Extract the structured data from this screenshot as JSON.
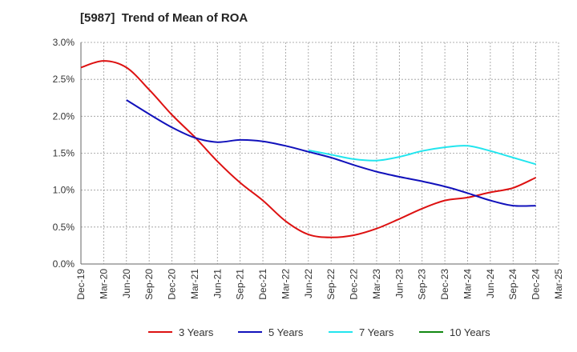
{
  "chart_data": {
    "type": "line",
    "title": "[5987]  Trend of Mean of ROA",
    "xlabel": "",
    "ylabel": "",
    "x_ticks": [
      "Dec-19",
      "Mar-20",
      "Jun-20",
      "Sep-20",
      "Dec-20",
      "Mar-21",
      "Jun-21",
      "Sep-21",
      "Dec-21",
      "Mar-22",
      "Jun-22",
      "Sep-22",
      "Dec-22",
      "Mar-23",
      "Jun-23",
      "Sep-23",
      "Dec-23",
      "Mar-24",
      "Jun-24",
      "Sep-24",
      "Dec-24",
      "Mar-25"
    ],
    "y_ticks": [
      "0.0%",
      "0.5%",
      "1.0%",
      "1.5%",
      "2.0%",
      "2.5%",
      "3.0%"
    ],
    "ylim": [
      0,
      3.0
    ],
    "grid": true,
    "legend_position": "bottom",
    "series": [
      {
        "name": "3 Years",
        "color": "#dd1111",
        "values": [
          2.66,
          2.75,
          2.66,
          2.36,
          2.02,
          1.72,
          1.39,
          1.1,
          0.86,
          0.58,
          0.4,
          0.36,
          0.39,
          0.48,
          0.61,
          0.75,
          0.86,
          0.9,
          0.97,
          1.03,
          1.17,
          null
        ]
      },
      {
        "name": "5 Years",
        "color": "#1111bb",
        "values": [
          null,
          null,
          2.22,
          2.03,
          1.85,
          1.71,
          1.65,
          1.68,
          1.66,
          1.6,
          1.52,
          1.44,
          1.34,
          1.25,
          1.18,
          1.12,
          1.05,
          0.96,
          0.86,
          0.79,
          0.79,
          null
        ]
      },
      {
        "name": "7 Years",
        "color": "#22e5ee",
        "values": [
          null,
          null,
          null,
          null,
          null,
          null,
          null,
          null,
          null,
          null,
          1.54,
          1.48,
          1.42,
          1.4,
          1.45,
          1.53,
          1.58,
          1.6,
          1.53,
          1.44,
          1.35,
          null
        ]
      },
      {
        "name": "10 Years",
        "color": "#118811",
        "values": [
          null,
          null,
          null,
          null,
          null,
          null,
          null,
          null,
          null,
          null,
          null,
          null,
          null,
          null,
          null,
          null,
          null,
          null,
          null,
          null,
          null,
          null
        ]
      }
    ]
  }
}
